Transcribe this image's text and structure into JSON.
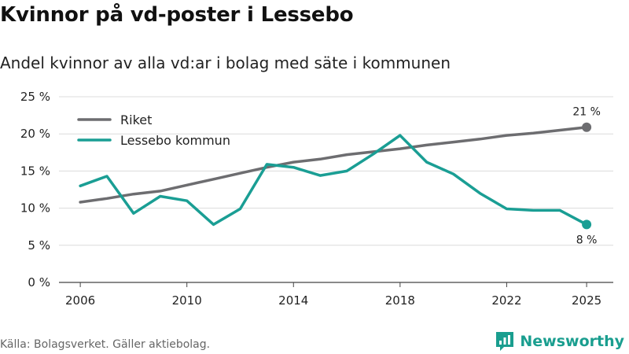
{
  "title": "Kvinnor på vd-poster i Lessebo",
  "subtitle": "Andel kvinnor av alla vd:ar i bolag med säte i kommunen",
  "source": "Källa: Bolagsverket. Gäller aktiebolag.",
  "brand": {
    "name": "Newsworthy",
    "color": "#1a9e8f"
  },
  "chart_data": {
    "type": "line",
    "title": "Kvinnor på vd-poster i Lessebo",
    "xlabel": "",
    "ylabel": "",
    "xlim": [
      2005.2,
      2026.0
    ],
    "ylim": [
      0,
      25
    ],
    "grid": true,
    "legend": "top-left",
    "x_ticks": [
      2006,
      2010,
      2014,
      2018,
      2022,
      2025
    ],
    "x_tick_labels": [
      "2006",
      "2010",
      "2014",
      "2018",
      "2022",
      "2025"
    ],
    "y_ticks": [
      0,
      5,
      10,
      15,
      20,
      25
    ],
    "y_tick_labels": [
      "0 %",
      "5 %",
      "10 %",
      "15 %",
      "20 %",
      "25 %"
    ],
    "x": [
      2006,
      2007,
      2008,
      2009,
      2010,
      2011,
      2012,
      2013,
      2014,
      2015,
      2016,
      2017,
      2018,
      2019,
      2020,
      2021,
      2022,
      2023,
      2024,
      2025
    ],
    "series": [
      {
        "name": "Riket",
        "color": "#6d6d70",
        "values": [
          10.8,
          11.3,
          11.9,
          12.3,
          13.1,
          13.9,
          14.7,
          15.5,
          16.2,
          16.6,
          17.2,
          17.6,
          18.0,
          18.5,
          18.9,
          19.3,
          19.8,
          20.1,
          20.5,
          20.9
        ],
        "end_label": "21 %"
      },
      {
        "name": "Lessebo kommun",
        "color": "#1a9e94",
        "values": [
          13.0,
          14.3,
          9.3,
          11.6,
          11.0,
          7.8,
          9.9,
          15.9,
          15.5,
          14.4,
          15.0,
          17.3,
          19.8,
          16.2,
          14.6,
          12.0,
          9.9,
          9.7,
          9.7,
          7.8
        ],
        "end_label": "8 %"
      }
    ]
  }
}
